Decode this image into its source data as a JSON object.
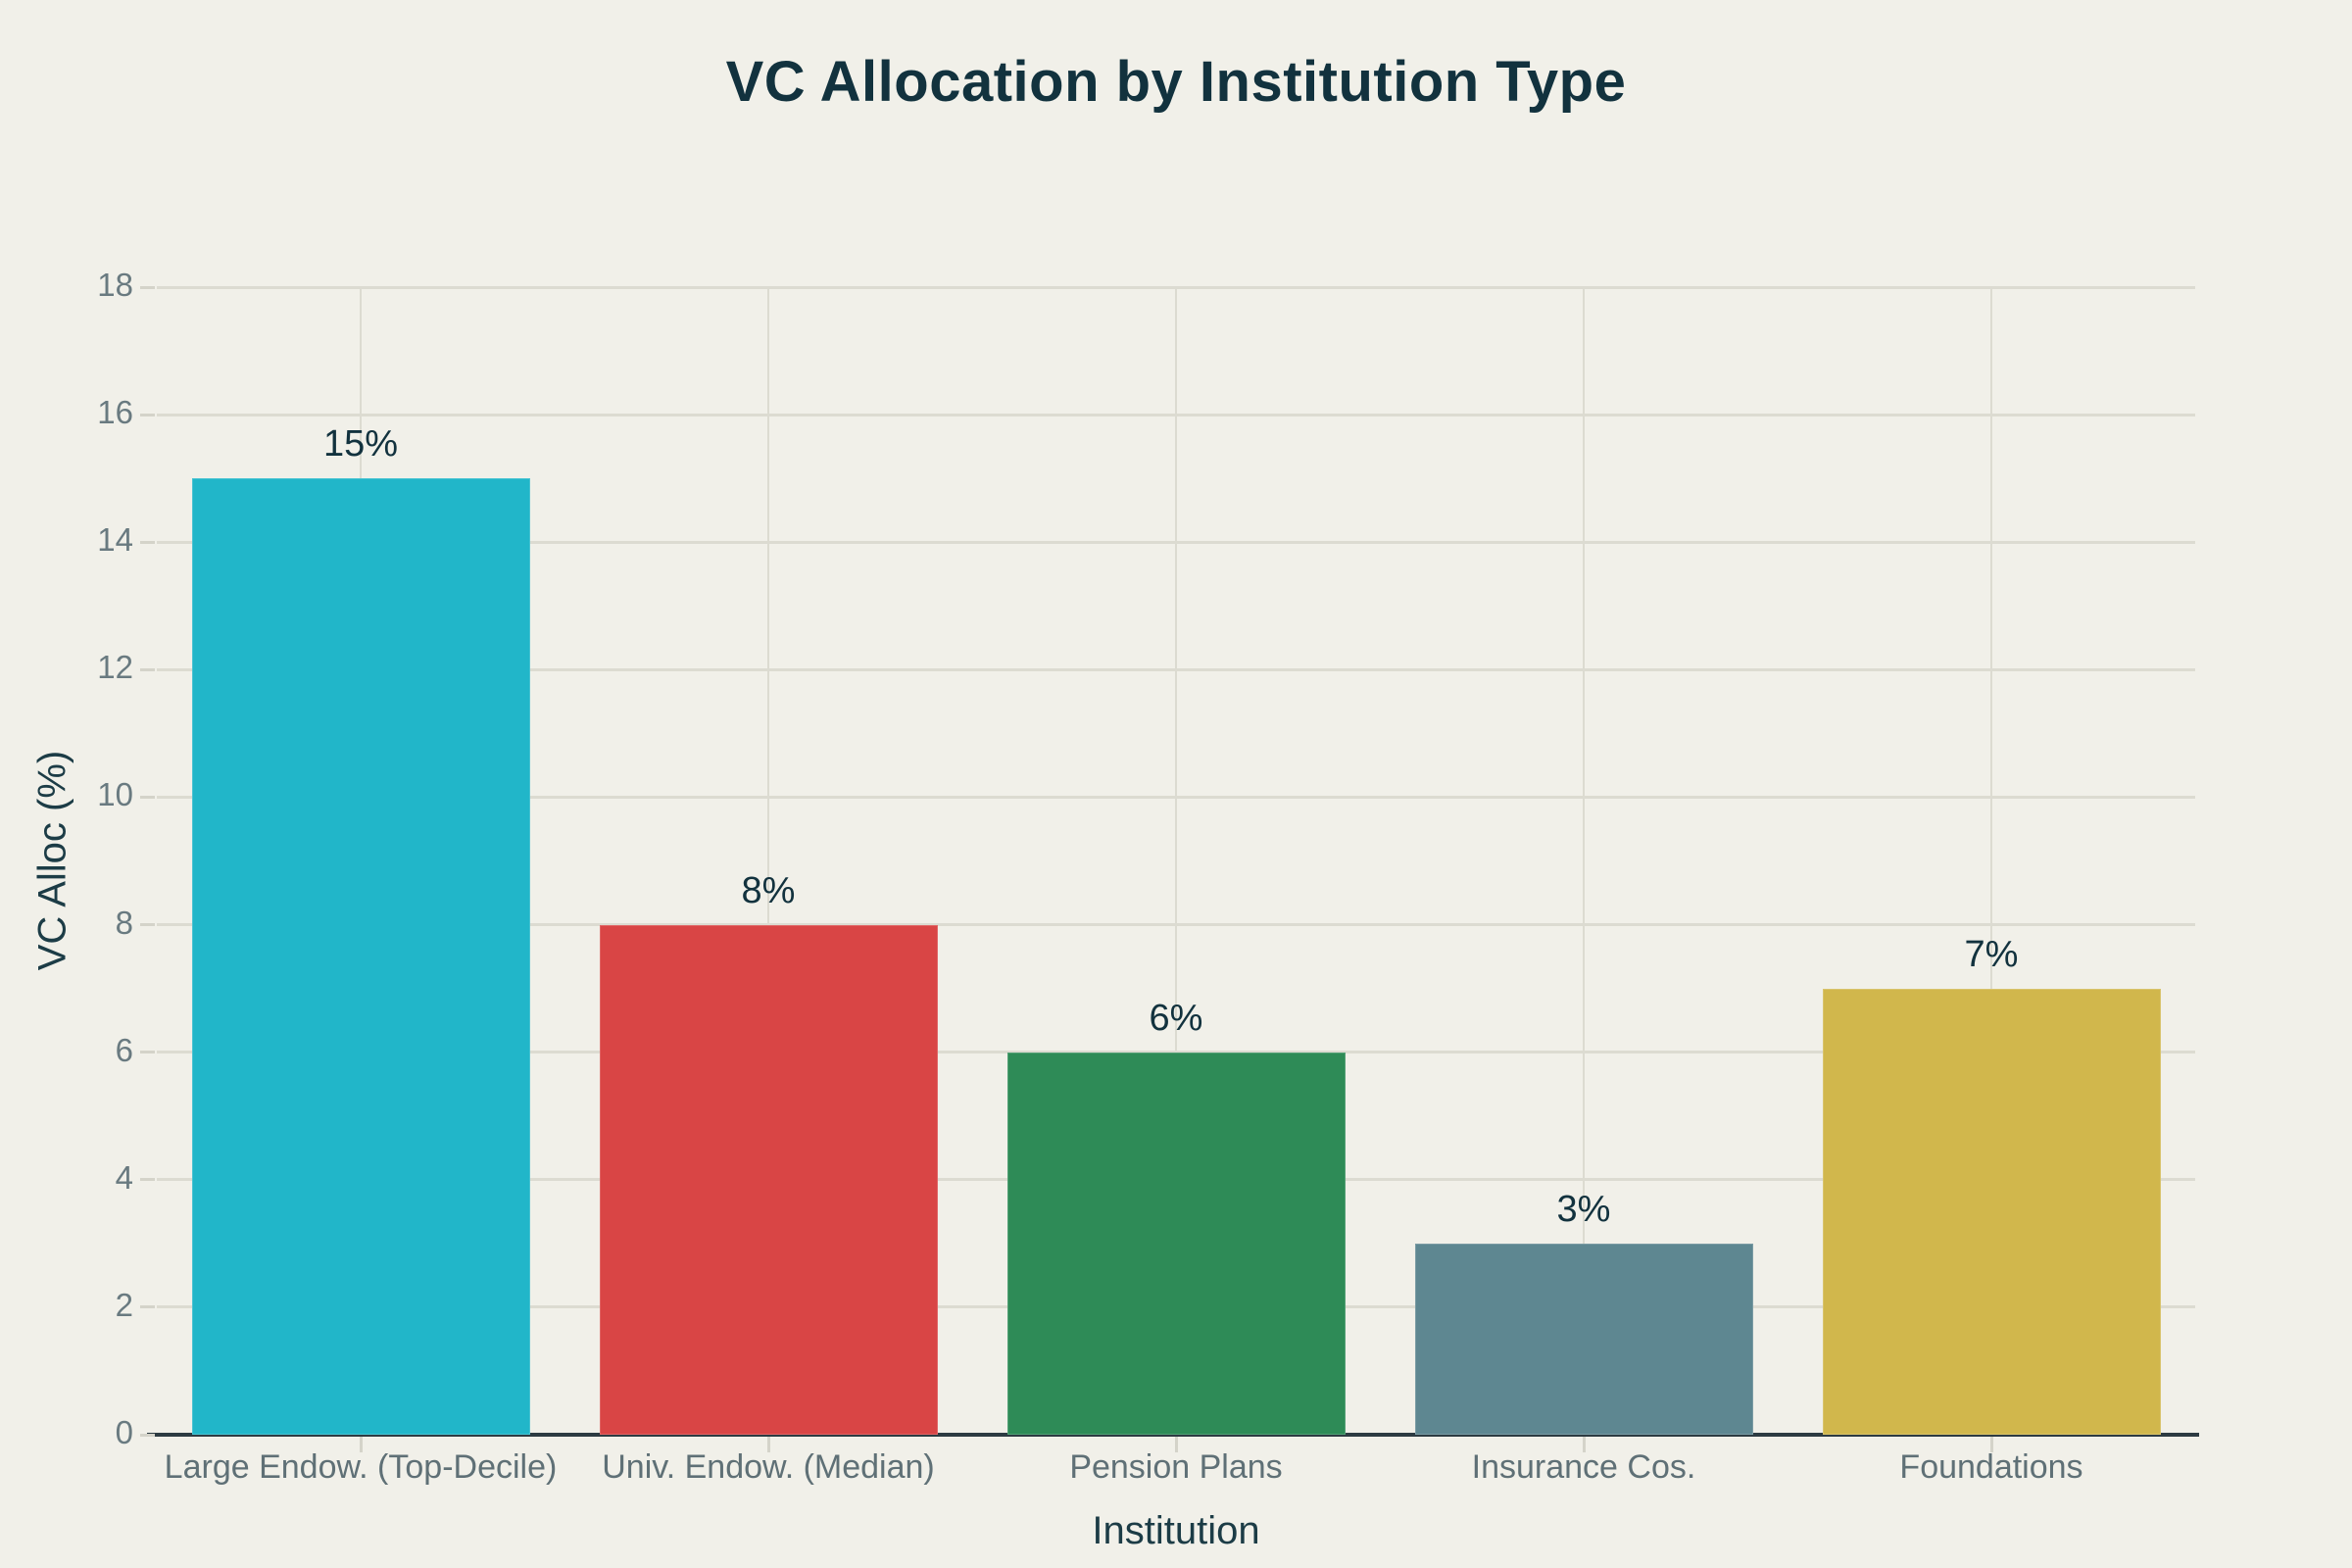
{
  "chart_data": {
    "type": "bar",
    "title": "VC Allocation by Institution Type",
    "xlabel": "Institution",
    "ylabel": "VC Alloc (%)",
    "categories": [
      "Large Endow. (Top-Decile)",
      "Univ. Endow. (Median)",
      "Pension Plans",
      "Insurance Cos.",
      "Foundations"
    ],
    "values": [
      15,
      8,
      6,
      3,
      7
    ],
    "value_labels": [
      "15%",
      "8%",
      "6%",
      "3%",
      "7%"
    ],
    "bar_colors": [
      "#21b6c9",
      "#d94545",
      "#2e8b57",
      "#5e8791",
      "#d1b74c"
    ],
    "ylim": [
      0,
      18
    ],
    "yticks": [
      0,
      2,
      4,
      6,
      8,
      10,
      12,
      14,
      16,
      18
    ],
    "grid": "on",
    "legend": "none"
  },
  "palette": {
    "background": "#f1f0e9",
    "title_color": "#12323e",
    "axis_title_color": "#1c3c46",
    "tick_label_color": "#697a80",
    "category_label_color": "#5f7076",
    "gridline_color": "#dcdbd1",
    "tick_mark_color": "#d4d3c9",
    "axis_line_color": "#2d3b42",
    "value_label_color": "#12323e"
  }
}
